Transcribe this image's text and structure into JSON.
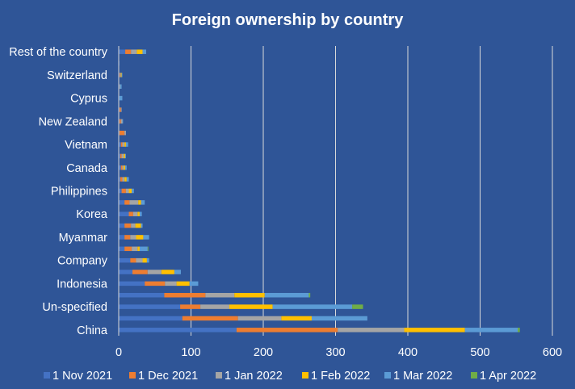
{
  "chart_data": {
    "type": "bar",
    "orientation": "horizontal",
    "stacked": true,
    "title": "Foreign ownership by country",
    "xlabel": "",
    "ylabel": "",
    "xlim": [
      0,
      600
    ],
    "x_ticks": [
      0,
      100,
      200,
      300,
      400,
      500,
      600
    ],
    "grid": true,
    "legend_position": "bottom",
    "categories": [
      "China",
      "",
      "Un-specified",
      "",
      "Indonesia",
      "",
      "Company",
      "",
      "Myanmar",
      "",
      "Korea",
      "",
      "Philippines",
      "",
      "Canada",
      "",
      "Vietnam",
      "",
      "New Zealand",
      "",
      "Cyprus",
      "",
      "Switzerland",
      "",
      "Rest of the country"
    ],
    "series": [
      {
        "name": "1 Nov 2021",
        "color": "#4472c4",
        "values": [
          163,
          88,
          85,
          63,
          36,
          19,
          16,
          8,
          8,
          8,
          14,
          8,
          4,
          2,
          3,
          2,
          3,
          1,
          1,
          1,
          1,
          1,
          1,
          1,
          9
        ]
      },
      {
        "name": "1 Dec 2021",
        "color": "#ed7d31",
        "values": [
          140,
          77,
          28,
          57,
          28,
          21,
          8,
          10,
          8,
          9,
          6,
          7,
          6,
          3,
          2,
          2,
          2,
          7,
          2,
          2,
          0,
          0,
          1,
          0,
          8
        ]
      },
      {
        "name": "1 Jan 2022",
        "color": "#a5a5a5",
        "values": [
          92,
          60,
          40,
          40,
          16,
          19,
          9,
          8,
          8,
          6,
          6,
          12,
          4,
          3,
          2,
          3,
          3,
          2,
          2,
          1,
          0,
          1,
          1,
          0,
          8
        ]
      },
      {
        "name": "1 Feb 2022",
        "color": "#ffc000",
        "values": [
          84,
          42,
          60,
          42,
          18,
          18,
          6,
          3,
          10,
          8,
          3,
          4,
          4,
          3,
          2,
          2,
          2,
          0,
          0,
          0,
          0,
          0,
          1,
          0,
          8
        ]
      },
      {
        "name": "1 Mar 2022",
        "color": "#5b9bd5",
        "values": [
          73,
          77,
          110,
          61,
          12,
          9,
          3,
          11,
          8,
          2,
          3,
          5,
          3,
          3,
          2,
          1,
          3,
          0,
          1,
          0,
          4,
          2,
          1,
          0,
          5
        ]
      },
      {
        "name": "1 Apr 2022",
        "color": "#70ad47",
        "values": [
          3,
          0,
          15,
          2,
          0,
          0,
          0,
          1,
          0,
          0,
          0,
          0,
          0,
          0,
          0,
          0,
          0,
          0,
          0,
          0,
          0,
          0,
          0,
          0,
          0
        ]
      }
    ]
  }
}
